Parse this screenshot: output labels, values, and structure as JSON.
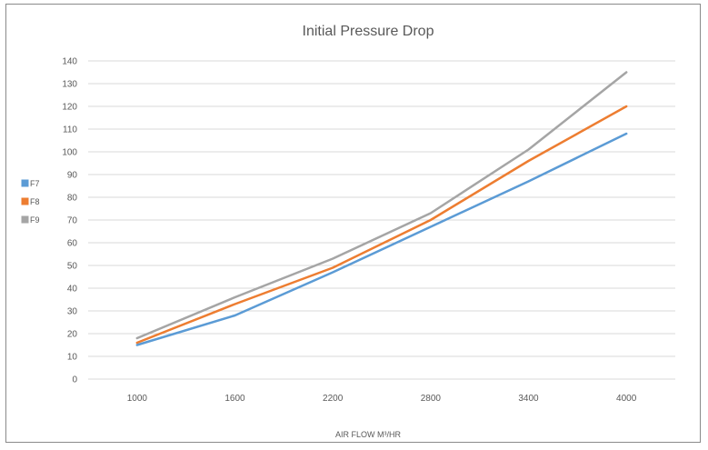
{
  "chart_data": {
    "type": "line",
    "title": "Initial Pressure Drop",
    "xlabel": "AIR FLOW M³/HR",
    "ylabel": "",
    "categories": [
      "1000",
      "1600",
      "2200",
      "2800",
      "3400",
      "4000"
    ],
    "ylim": [
      0,
      140
    ],
    "yticks": [
      0,
      10,
      20,
      30,
      40,
      50,
      60,
      70,
      80,
      90,
      100,
      110,
      120,
      130,
      140
    ],
    "grid": true,
    "legend_position": "left",
    "series": [
      {
        "name": "F7",
        "color": "#5b9bd5",
        "values": [
          15,
          28,
          47,
          67,
          87,
          108
        ]
      },
      {
        "name": "F8",
        "color": "#ed7d31",
        "values": [
          16,
          33,
          49,
          70,
          96,
          120
        ]
      },
      {
        "name": "F9",
        "color": "#a5a5a5",
        "values": [
          18,
          36,
          53,
          73,
          101,
          135
        ]
      }
    ]
  }
}
